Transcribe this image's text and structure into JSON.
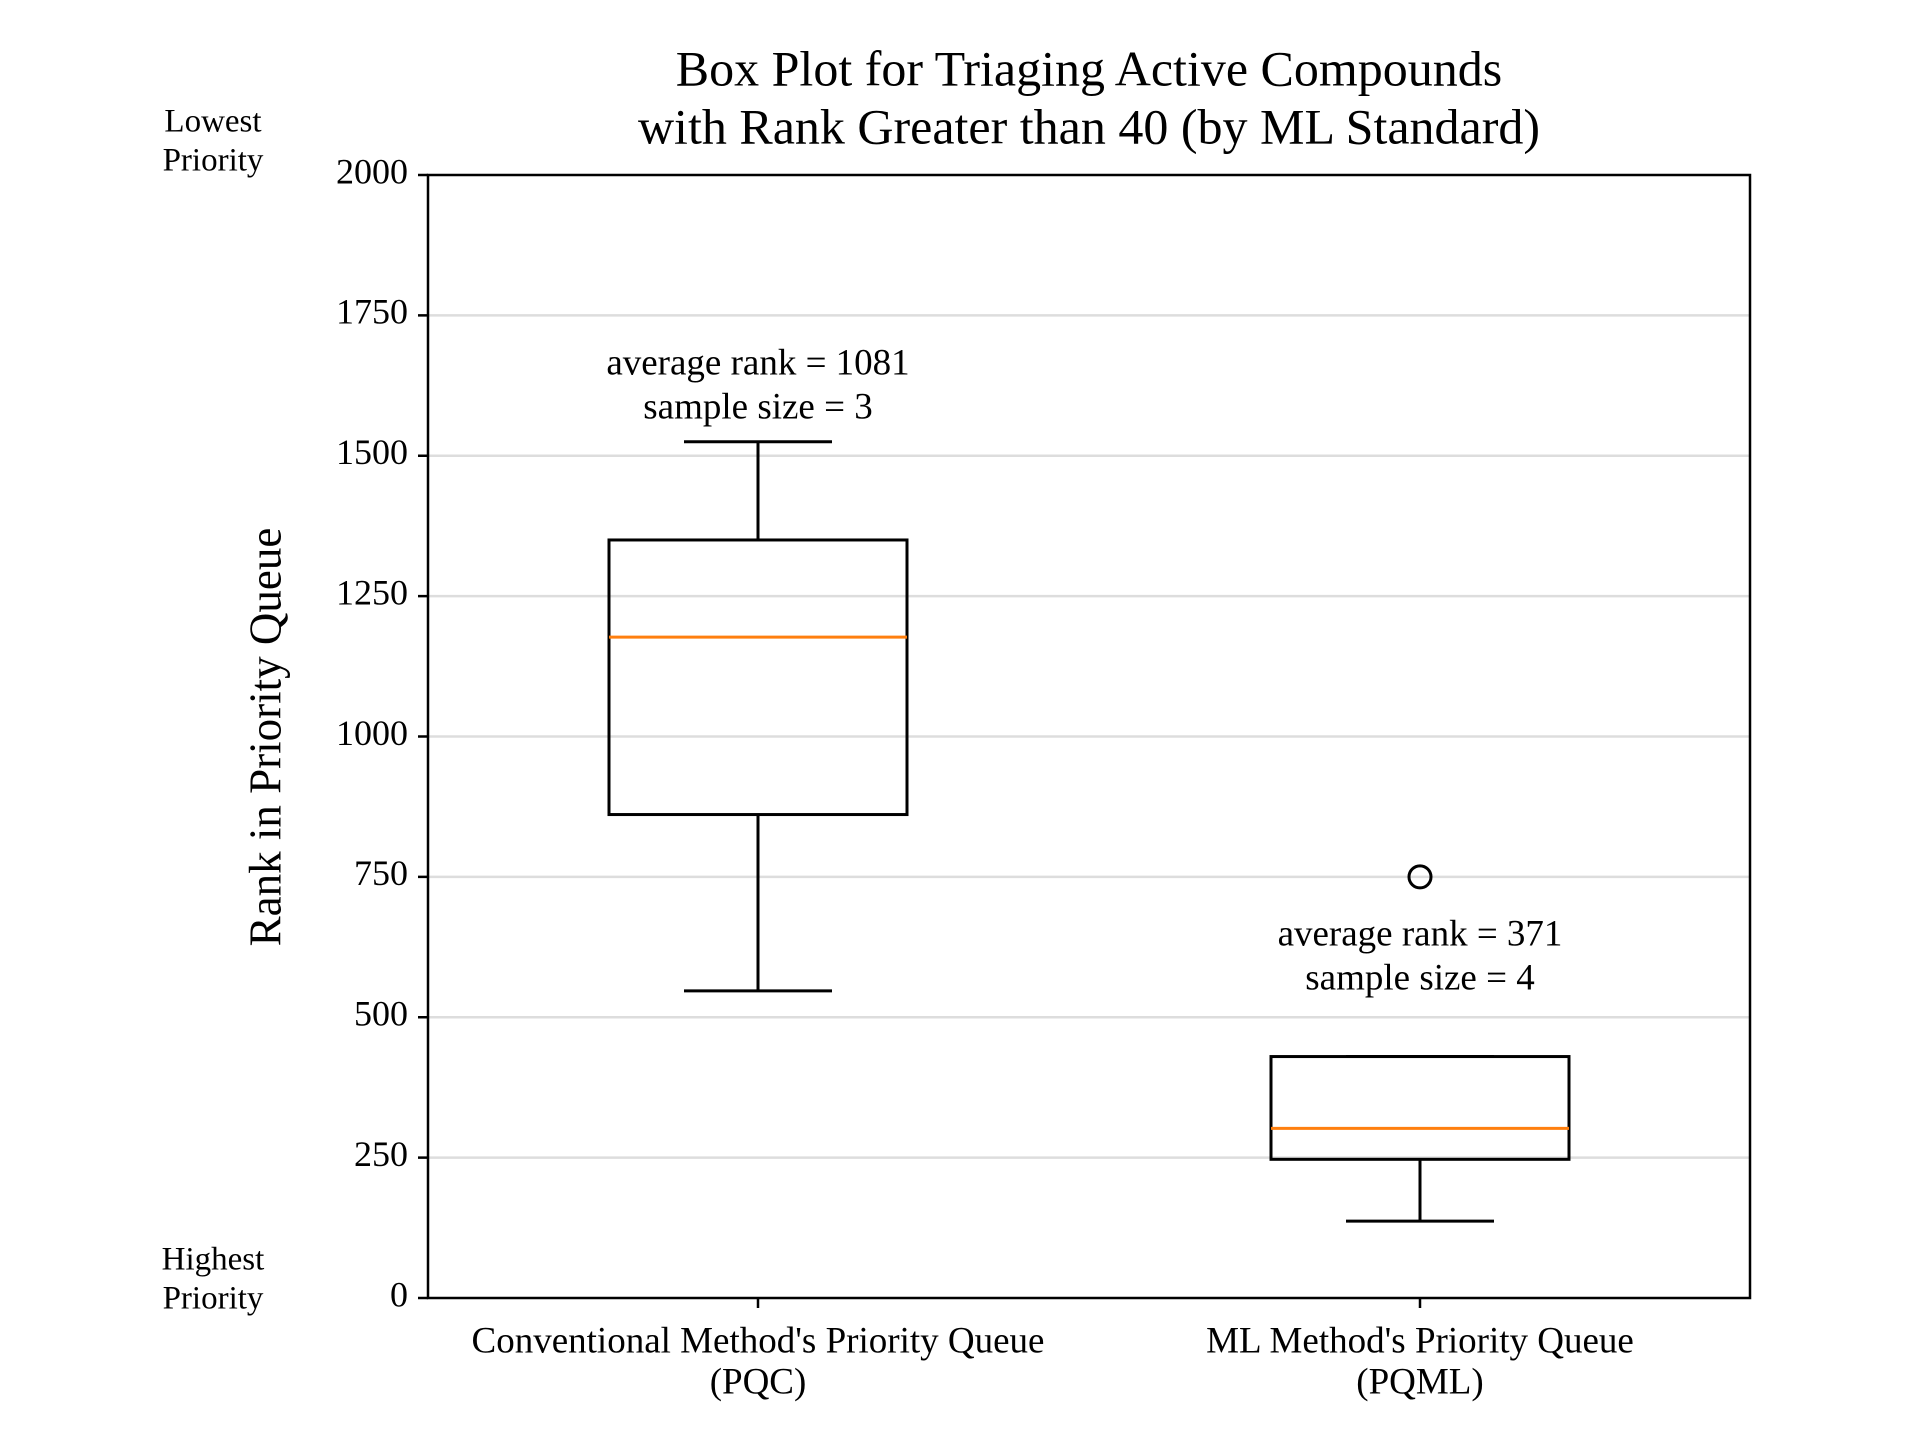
{
  "chart_data": {
    "type": "box",
    "title": [
      "Box Plot for Triaging Active Compounds",
      "with Rank Greater than 40 (by ML Standard)"
    ],
    "ylabel": "Rank in Priority Queue",
    "top_label": [
      "Lowest",
      "Priority"
    ],
    "bottom_label": [
      "Highest",
      "Priority"
    ],
    "categories": [
      [
        "Conventional Method's Priority Queue",
        "(PQC)"
      ],
      [
        "ML Method's Priority Queue",
        "(PQML)"
      ]
    ],
    "boxes": [
      {
        "whislo": 547,
        "q1": 861,
        "med": 1177,
        "q3": 1350,
        "whishi": 1525,
        "fliers": []
      },
      {
        "whislo": 137,
        "q1": 247,
        "med": 302,
        "q3": 430,
        "whishi": 430,
        "fliers": [
          750
        ]
      }
    ],
    "annotations": [
      [
        "average rank = 1081",
        "sample size = 3"
      ],
      [
        "average rank = 371",
        "sample size = 4"
      ]
    ],
    "box_color": "#000000",
    "median_color": "#ff7f0e",
    "ylim": [
      0,
      2000
    ],
    "yticks": [
      0,
      250,
      500,
      750,
      1000,
      1250,
      1500,
      1750,
      2000
    ],
    "grid": true
  }
}
